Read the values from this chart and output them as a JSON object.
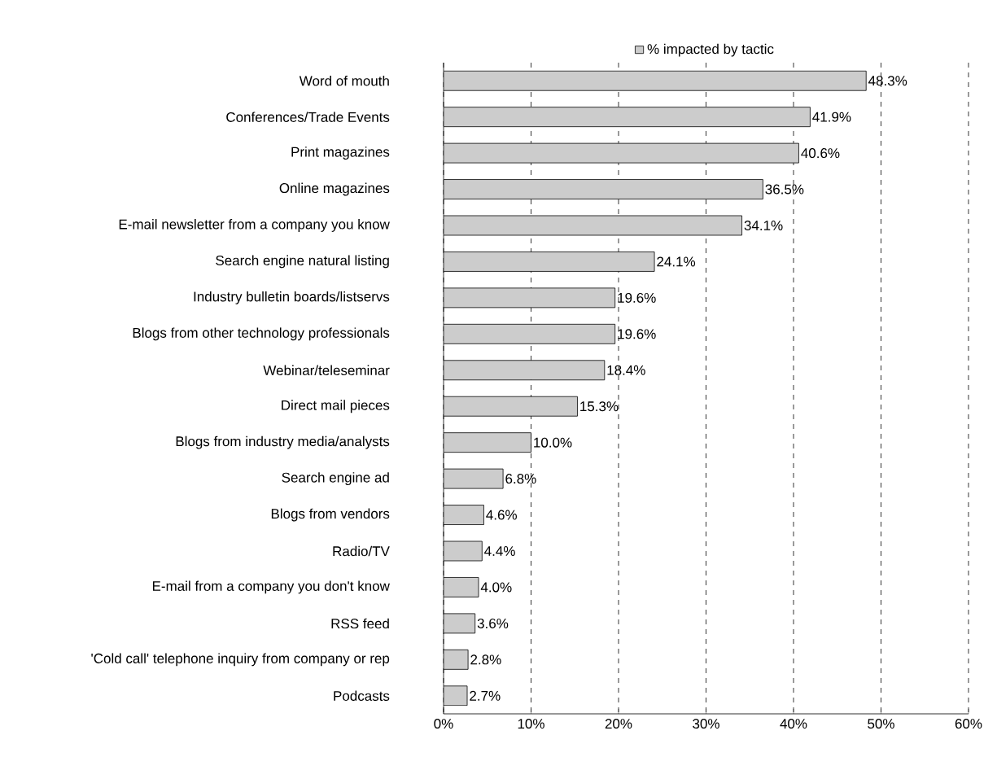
{
  "chart_data": {
    "type": "bar",
    "orientation": "horizontal",
    "categories": [
      "Word of mouth",
      "Conferences/Trade Events",
      "Print magazines",
      "Online magazines",
      "E-mail newsletter from a company you know",
      "Search engine natural listing",
      "Industry bulletin boards/listservs",
      "Blogs from other technology professionals",
      "Webinar/teleseminar",
      "Direct mail pieces",
      "Blogs from industry media/analysts",
      "Search engine ad",
      "Blogs from vendors",
      "Radio/TV",
      "E-mail from a company you don't know",
      "RSS feed",
      "'Cold call' telephone inquiry from company or rep",
      "Podcasts"
    ],
    "series": [
      {
        "name": "% impacted by tactic",
        "color": "#cccccc",
        "values": [
          48.3,
          41.9,
          40.6,
          36.5,
          34.1,
          24.1,
          19.6,
          19.6,
          18.4,
          15.3,
          10.0,
          6.8,
          4.6,
          4.4,
          4.0,
          3.6,
          2.8,
          2.7
        ],
        "value_labels": [
          "48.3%",
          "41.9%",
          "40.6%",
          "36.5%",
          "34.1%",
          "24.1%",
          "19.6%",
          "19.6%",
          "18.4%",
          "15.3%",
          "10.0%",
          "6.8%",
          "4.6%",
          "4.4%",
          "4.0%",
          "3.6%",
          "2.8%",
          "2.7%"
        ]
      }
    ],
    "xlim": [
      0,
      60
    ],
    "xticks": [
      {
        "value": 0,
        "label": "0%"
      },
      {
        "value": 10,
        "label": "10%"
      },
      {
        "value": 20,
        "label": "20%"
      },
      {
        "value": 30,
        "label": "30%"
      },
      {
        "value": 40,
        "label": "40%"
      },
      {
        "value": 50,
        "label": "50%"
      },
      {
        "value": 60,
        "label": "60%"
      }
    ],
    "grid": "x",
    "legend": "top"
  }
}
